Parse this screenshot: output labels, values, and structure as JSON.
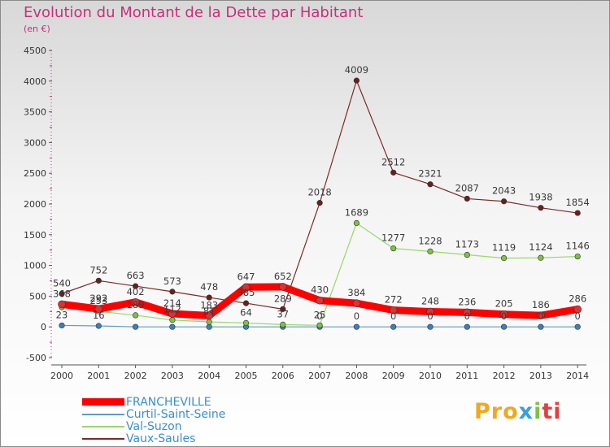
{
  "header": {
    "title": "Evolution du Montant de la Dette par Habitant",
    "subtitle": "(en €)"
  },
  "logo": {
    "text": "Proxiti"
  },
  "chart_data": {
    "type": "line",
    "title": "Evolution du Montant de la Dette par Habitant",
    "subtitle": "(en €)",
    "xlabel": "",
    "ylabel": "",
    "x": [
      "2000",
      "2001",
      "2002",
      "2003",
      "2004",
      "2005",
      "2006",
      "2007",
      "2008",
      "2009",
      "2010",
      "2011",
      "2012",
      "2013",
      "2014"
    ],
    "ylim": [
      -500,
      4500
    ],
    "yticks": [
      -500,
      0,
      500,
      1000,
      1500,
      2000,
      2500,
      3000,
      3500,
      4000,
      4500
    ],
    "grid": false,
    "legend": "bottom-left",
    "series": [
      {
        "name": "FRANCHEVILLE",
        "color": "#ff0000",
        "marker_color": "#e03030",
        "emphasis": true,
        "values": [
          368,
          292,
          402,
          214,
          183,
          647,
          652,
          430,
          384,
          272,
          248,
          236,
          205,
          186,
          286
        ],
        "labels": [
          "368",
          "292",
          "402",
          "214",
          "183",
          "647",
          "652",
          "430",
          "384",
          "272",
          "248",
          "236",
          "205",
          "186",
          "286"
        ]
      },
      {
        "name": "Curtil-Saint-Seine",
        "color": "#5f9bc8",
        "marker_color": "#3a7fc0",
        "values": [
          23,
          16,
          0,
          0,
          0,
          0,
          0,
          0,
          0,
          0,
          0,
          0,
          0,
          0,
          0
        ],
        "labels": [
          "23",
          "16",
          "",
          "",
          "",
          "",
          "",
          "0",
          "0",
          "0",
          "0",
          "0",
          "0",
          "0",
          "0"
        ]
      },
      {
        "name": "Val-Suzon",
        "color": "#98d96a",
        "marker_color": "#7cc242",
        "values": [
          320,
          253,
          189,
          112,
          81,
          64,
          37,
          25,
          1689,
          1277,
          1228,
          1173,
          1119,
          1124,
          1146
        ],
        "labels": [
          "",
          "253",
          "189",
          "112",
          "81",
          "64",
          "37",
          "25",
          "1689",
          "1277",
          "1228",
          "1173",
          "1119",
          "1124",
          "1146"
        ]
      },
      {
        "name": "Vaux-Saules",
        "color": "#7a2a2a",
        "marker_color": "#6a1f1f",
        "values": [
          540,
          752,
          663,
          573,
          478,
          385,
          289,
          2018,
          4009,
          2512,
          2321,
          2087,
          2043,
          1938,
          1854
        ],
        "labels": [
          "540",
          "752",
          "663",
          "573",
          "478",
          "385",
          "289",
          "2018",
          "4009",
          "2512",
          "2321",
          "2087",
          "2043",
          "1938",
          "1854"
        ]
      }
    ]
  }
}
